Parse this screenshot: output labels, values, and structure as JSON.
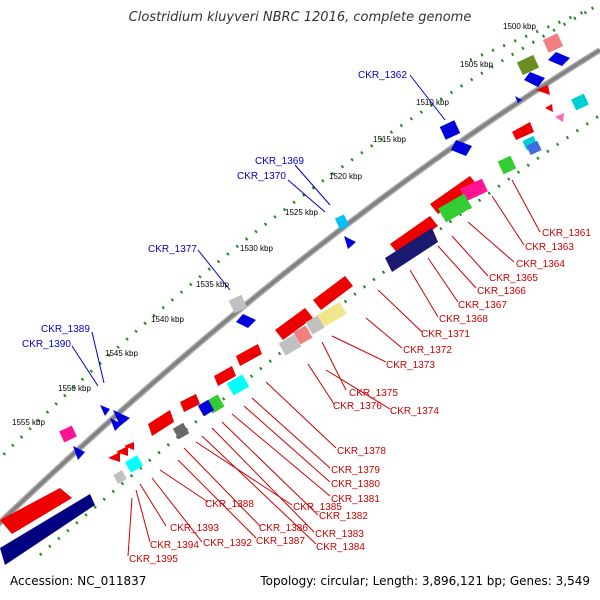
{
  "title": "Clostridium kluyveri NBRC 12016, complete genome",
  "accession_text": "Accession: NC_011837",
  "summary_text": "Topology: circular; Length: 3,896,121 bp; Genes: 3,549",
  "scale_labels": [
    "1500 kbp",
    "1505 kbp",
    "1510 kbp",
    "1515 kbp",
    "1520 kbp",
    "1525 kbp",
    "1530 kbp",
    "1535 kbp",
    "1540 kbp",
    "1545 kbp",
    "1550 kbp",
    "1555 kbp"
  ],
  "blue_labels": [
    "CKR_1362",
    "CKR_1369",
    "CKR_1370",
    "CKR_1377",
    "CKR_1389",
    "CKR_1390"
  ],
  "red_labels": [
    "CKR_1361",
    "CKR_1363",
    "CKR_1364",
    "CKR_1365",
    "CKR_1366",
    "CKR_1367",
    "CKR_1368",
    "CKR_1371",
    "CKR_1372",
    "CKR_1373",
    "CKR_1375",
    "CKR_1376",
    "CKR_1374",
    "CKR_1378",
    "CKR_1379",
    "CKR_1380",
    "CKR_1381",
    "CKR_1382",
    "CKR_1383",
    "CKR_1384",
    "CKR_1385",
    "CKR_1386",
    "CKR_1387",
    "CKR_1388",
    "CKR_1392",
    "CKR_1393",
    "CKR_1394",
    "CKR_1395"
  ],
  "colors": {
    "label_blue": "#0000cc",
    "label_red": "#cc0000",
    "forward_feature": "#ee0000",
    "reverse_feature": "#0000dd",
    "dotted_track": "#228b22",
    "backbone": "#808080"
  }
}
